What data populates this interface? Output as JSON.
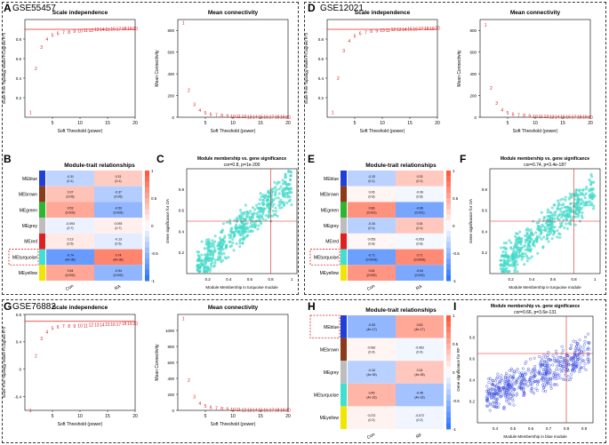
{
  "dataset_a": "GSE55457",
  "dataset_d": "GSE12021",
  "dataset_g": "GSE76882",
  "panel_letters": [
    "A",
    "B",
    "C",
    "D",
    "E",
    "F",
    "G",
    "H",
    "I"
  ],
  "scale_title": "Scale independence",
  "mean_title": "Mean connectivity",
  "scale_ylabel": "Scale Free Topology Model Fit,signed R^2",
  "mean_ylabel": "Mean Connectivity",
  "xlabel": "Soft Threshold (power)",
  "mt_title": "Module-trait relationships",
  "trait_cols_AB": [
    "Con",
    "RA"
  ],
  "trait_cols_DE": [
    "Con",
    "RA"
  ],
  "trait_cols_H": [
    "Con",
    "RF"
  ],
  "modules_B": [
    "MEblue",
    "MEbrown",
    "MEgreen",
    "MEgrey",
    "MEred",
    "MEturquoise",
    "MEyellow"
  ],
  "module_colors_B": [
    "#1f3fd6",
    "#8b3a1a",
    "#2db52d",
    "#bdbdbd",
    "#e02020",
    "#40e0d0",
    "#f2e600"
  ],
  "modules_H": [
    "MEblue",
    "MEbrown",
    "MEgrey",
    "MEturquoise",
    "MEyellow"
  ],
  "module_colors_H": [
    "#1f3fd6",
    "#8b3a1a",
    "#bdbdbd",
    "#40e0d0",
    "#f2e600"
  ],
  "cells_B": [
    [
      "-0.31 (0.1)",
      "0.31 (0.1)"
    ],
    [
      "0.37 (0.05)",
      "-0.37 (0.05)"
    ],
    [
      "0.53 (0.003)",
      "-0.53 (0.003)"
    ],
    [
      "-0.093 (0.7)",
      "0.093 (0.7)"
    ],
    [
      "0.13 (0.5)",
      "-0.13 (0.5)"
    ],
    [
      "-0.74 (4e-06)",
      "0.74 (4e-06)"
    ],
    [
      "0.54 (0.002)",
      "-0.54 (0.002)"
    ]
  ],
  "cells_E": [
    [
      "-0.33 (0.1)",
      "0.33 (0.1)"
    ],
    [
      "0.06 (0.8)",
      "-0.06 (0.8)"
    ],
    [
      "0.66 (0.001)",
      "-0.66 (0.001)"
    ],
    [
      "-0.34 (0.1)",
      "0.34 (0.1)"
    ],
    [
      "0.053 (0.8)",
      "-0.053 (0.8)"
    ],
    [
      "-0.71 (0.0003)",
      "0.71 (0.0003)"
    ],
    [
      "0.64 (0.002)",
      "-0.64 (0.002)"
    ]
  ],
  "cells_H": [
    [
      "-0.53 (4e-17)",
      "0.53 (4e-17)"
    ],
    [
      "0.062 (0.4)",
      "-0.062 (0.4)"
    ],
    [
      "-0.34 (4e-05)",
      "0.34 (4e-05)"
    ],
    [
      "0.45 (4e-16)",
      "-0.45 (4e-16)"
    ],
    [
      "0.072 (0.2)",
      "-0.072 (0.2)"
    ]
  ],
  "legend_ticks": [
    "1",
    "0.5",
    "0",
    "-0.5",
    "-1"
  ],
  "scatter_C": {
    "title": "Module membership vs. gene significance",
    "subtitle": "cor=0.8, p=1e-200",
    "xlabel": "Module Membership in turquoise module",
    "ylabel": "Gene significance for OA"
  },
  "scatter_F": {
    "title": "Module membership vs. gene significance",
    "subtitle": "cor=0.74, p=3.4e-187",
    "xlabel": "Module Membership in turquoise module",
    "ylabel": "Gene significance for OA"
  },
  "scatter_I": {
    "title": "Module membership vs. gene significance",
    "subtitle": "cor=0.66, p=3.6e-131",
    "xlabel": "Module Membership in blue module",
    "ylabel": "Gene significance for RF"
  },
  "chart_data": [
    {
      "type": "scatter",
      "panel": "A-scale",
      "title": "Scale independence",
      "xlabel": "Soft Threshold (power)",
      "ylabel": "Scale Free Topology Model Fit,signed R^2",
      "x": [
        1,
        2,
        3,
        4,
        5,
        6,
        7,
        8,
        9,
        10,
        11,
        12,
        13,
        14,
        15,
        16,
        17,
        18,
        19,
        20
      ],
      "y": [
        0.05,
        0.5,
        0.72,
        0.8,
        0.84,
        0.86,
        0.87,
        0.875,
        0.88,
        0.885,
        0.89,
        0.89,
        0.9,
        0.9,
        0.9,
        0.905,
        0.905,
        0.91,
        0.91,
        0.91
      ],
      "xlim": [
        0,
        20
      ],
      "ylim": [
        0,
        1
      ],
      "xticks": [
        5,
        10,
        15,
        20
      ],
      "yticks": [
        0.2,
        0.4,
        0.6,
        0.8
      ],
      "hline": 0.9
    },
    {
      "type": "scatter",
      "panel": "A-mean",
      "title": "Mean connectivity",
      "xlabel": "Soft Threshold (power)",
      "ylabel": "Mean Connectivity",
      "x": [
        1,
        2,
        3,
        4,
        5,
        6,
        7,
        8,
        9,
        10,
        11,
        12,
        13,
        14,
        15,
        16,
        17,
        18,
        19,
        20
      ],
      "y": [
        870,
        250,
        120,
        65,
        40,
        28,
        20,
        15,
        12,
        10,
        8,
        7,
        6,
        5,
        4,
        4,
        3,
        3,
        3,
        2
      ],
      "xlim": [
        0,
        20
      ],
      "ylim": [
        0,
        900
      ],
      "xticks": [
        5,
        10,
        15,
        20
      ],
      "yticks": [
        0,
        200,
        400,
        600,
        800
      ]
    },
    {
      "type": "scatter",
      "panel": "D-scale",
      "title": "Scale independence",
      "xlabel": "Soft Threshold (power)",
      "ylabel": "Scale Free Topology Model Fit,signed R^2",
      "x": [
        1,
        2,
        3,
        4,
        5,
        6,
        7,
        8,
        9,
        10,
        11,
        12,
        13,
        14,
        15,
        16,
        17,
        18,
        19,
        20
      ],
      "y": [
        0.05,
        0.4,
        0.68,
        0.78,
        0.83,
        0.86,
        0.87,
        0.88,
        0.885,
        0.89,
        0.89,
        0.9,
        0.9,
        0.9,
        0.905,
        0.905,
        0.91,
        0.91,
        0.91,
        0.915
      ],
      "xlim": [
        0,
        20
      ],
      "ylim": [
        0,
        1
      ],
      "xticks": [
        5,
        10,
        15,
        20
      ],
      "yticks": [
        0.2,
        0.4,
        0.6,
        0.8
      ],
      "hline": 0.9
    },
    {
      "type": "scatter",
      "panel": "D-mean",
      "title": "Mean connectivity",
      "xlabel": "Soft Threshold (power)",
      "ylabel": "Mean Connectivity",
      "x": [
        1,
        2,
        3,
        4,
        5,
        6,
        7,
        8,
        9,
        10,
        11,
        12,
        13,
        14,
        15,
        16,
        17,
        18,
        19,
        20
      ],
      "y": [
        850,
        270,
        130,
        70,
        42,
        28,
        20,
        15,
        12,
        10,
        8,
        7,
        6,
        5,
        4,
        4,
        3,
        3,
        3,
        2
      ],
      "xlim": [
        0,
        20
      ],
      "ylim": [
        0,
        900
      ],
      "xticks": [
        5,
        10,
        15,
        20
      ],
      "yticks": [
        0,
        200,
        400,
        600,
        800
      ]
    },
    {
      "type": "scatter",
      "panel": "G-scale",
      "title": "Scale independence",
      "xlabel": "Soft Threshold (power)",
      "ylabel": "Scale Free Topology Model Fit,signed R^2",
      "x": [
        1,
        2,
        3,
        4,
        5,
        6,
        7,
        8,
        9,
        10,
        11,
        12,
        13,
        14,
        15,
        16,
        17,
        18,
        19,
        20
      ],
      "y": [
        -0.6,
        0.2,
        0.45,
        0.55,
        0.6,
        0.62,
        0.63,
        0.63,
        0.63,
        0.64,
        0.64,
        0.65,
        0.65,
        0.65,
        0.66,
        0.66,
        0.66,
        0.67,
        0.67,
        0.67
      ],
      "xlim": [
        0,
        20
      ],
      "ylim": [
        -0.6,
        0.8
      ],
      "xticks": [
        5,
        10,
        15,
        20
      ],
      "yticks": [
        -0.4,
        0,
        0.4,
        0.8
      ],
      "hline": 0.7
    },
    {
      "type": "scatter",
      "panel": "G-mean",
      "title": "Mean connectivity",
      "xlabel": "Soft Threshold (power)",
      "ylabel": "Mean Connectivity",
      "x": [
        1,
        2,
        3,
        4,
        5,
        6,
        7,
        8,
        9,
        10,
        11,
        12,
        13,
        14,
        15,
        16,
        17,
        18,
        19,
        20
      ],
      "y": [
        1150,
        380,
        170,
        90,
        55,
        38,
        27,
        20,
        15,
        12,
        10,
        8,
        7,
        6,
        5,
        4,
        4,
        3,
        3,
        3
      ],
      "xlim": [
        0,
        20
      ],
      "ylim": [
        0,
        1200
      ],
      "xticks": [
        5,
        10,
        15,
        20
      ],
      "yticks": [
        0,
        200,
        400,
        600,
        800,
        1000
      ]
    }
  ]
}
